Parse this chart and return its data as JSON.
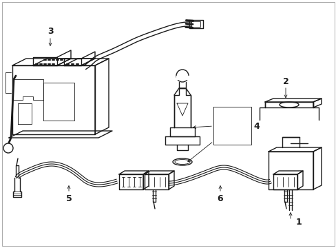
{
  "bg_color": "#ffffff",
  "line_color": "#1a1a1a",
  "lw": 1.0,
  "tlw": 0.6,
  "figsize": [
    4.89,
    3.6
  ],
  "dpi": 100
}
